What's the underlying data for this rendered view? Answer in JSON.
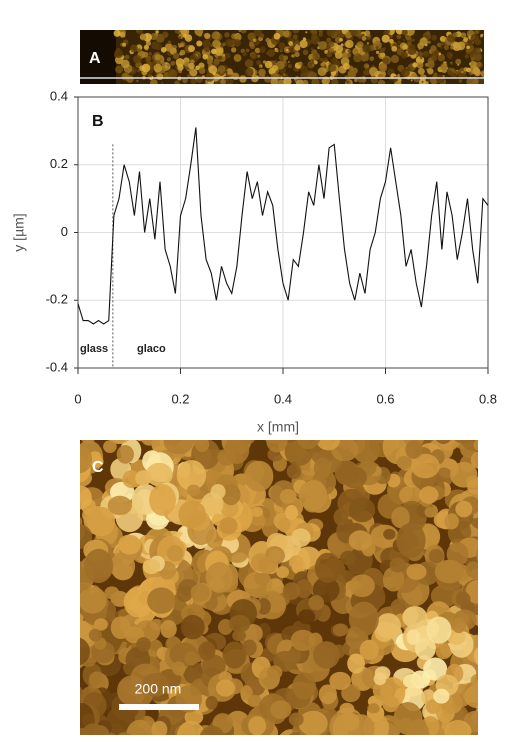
{
  "figure": {
    "panel_a_label": "A",
    "panel_c_label": "C",
    "scale_bar": "200 nm"
  },
  "chart_data": {
    "type": "line",
    "panel_label": "B",
    "xlabel": "x [mm]",
    "ylabel": "y [µm]",
    "annotations": [
      "glass",
      "glaco"
    ],
    "boundary_x": 0.068,
    "color": "#111111",
    "x": [
      0,
      0.01,
      0.02,
      0.03,
      0.04,
      0.05,
      0.06,
      0.07,
      0.08,
      0.09,
      0.1,
      0.11,
      0.12,
      0.13,
      0.14,
      0.15,
      0.16,
      0.17,
      0.18,
      0.19,
      0.2,
      0.21,
      0.22,
      0.23,
      0.24,
      0.25,
      0.26,
      0.27,
      0.28,
      0.29,
      0.3,
      0.31,
      0.32,
      0.33,
      0.34,
      0.35,
      0.36,
      0.37,
      0.38,
      0.39,
      0.4,
      0.41,
      0.42,
      0.43,
      0.44,
      0.45,
      0.46,
      0.47,
      0.48,
      0.49,
      0.5,
      0.51,
      0.52,
      0.53,
      0.54,
      0.55,
      0.56,
      0.57,
      0.58,
      0.59,
      0.6,
      0.61,
      0.62,
      0.63,
      0.64,
      0.65,
      0.66,
      0.67,
      0.68,
      0.69,
      0.7,
      0.71,
      0.72,
      0.73,
      0.74,
      0.75,
      0.76,
      0.77,
      0.78,
      0.79,
      0.8
    ],
    "values": [
      -0.21,
      -0.26,
      -0.26,
      -0.27,
      -0.26,
      -0.27,
      -0.26,
      0.05,
      0.1,
      0.2,
      0.15,
      0.05,
      0.18,
      0,
      0.1,
      -0.02,
      0.15,
      -0.05,
      -0.1,
      -0.18,
      0.05,
      0.1,
      0.2,
      0.31,
      0.05,
      -0.08,
      -0.12,
      -0.2,
      -0.1,
      -0.15,
      -0.18,
      -0.1,
      0.05,
      0.18,
      0.1,
      0.15,
      0.05,
      0.12,
      0.08,
      -0.05,
      -0.15,
      -0.2,
      -0.08,
      -0.1,
      0,
      0.12,
      0.08,
      0.2,
      0.1,
      0.25,
      0.26,
      0.1,
      -0.05,
      -0.15,
      -0.2,
      -0.12,
      -0.18,
      -0.05,
      0,
      0.1,
      0.15,
      0.25,
      0.15,
      0.05,
      -0.1,
      -0.05,
      -0.15,
      -0.22,
      -0.1,
      0.05,
      0.15,
      -0.05,
      0.12,
      0.05,
      -0.08,
      0,
      0.1,
      -0.05,
      -0.15,
      0.1,
      0.08
    ],
    "xlim": [
      0,
      0.8
    ],
    "xticks": [
      0,
      0.2,
      0.4,
      0.6,
      0.8
    ],
    "ylim": [
      -0.4,
      0.4
    ],
    "yticks": [
      -0.4,
      -0.2,
      0,
      0.2,
      0.4
    ],
    "grid": true
  }
}
